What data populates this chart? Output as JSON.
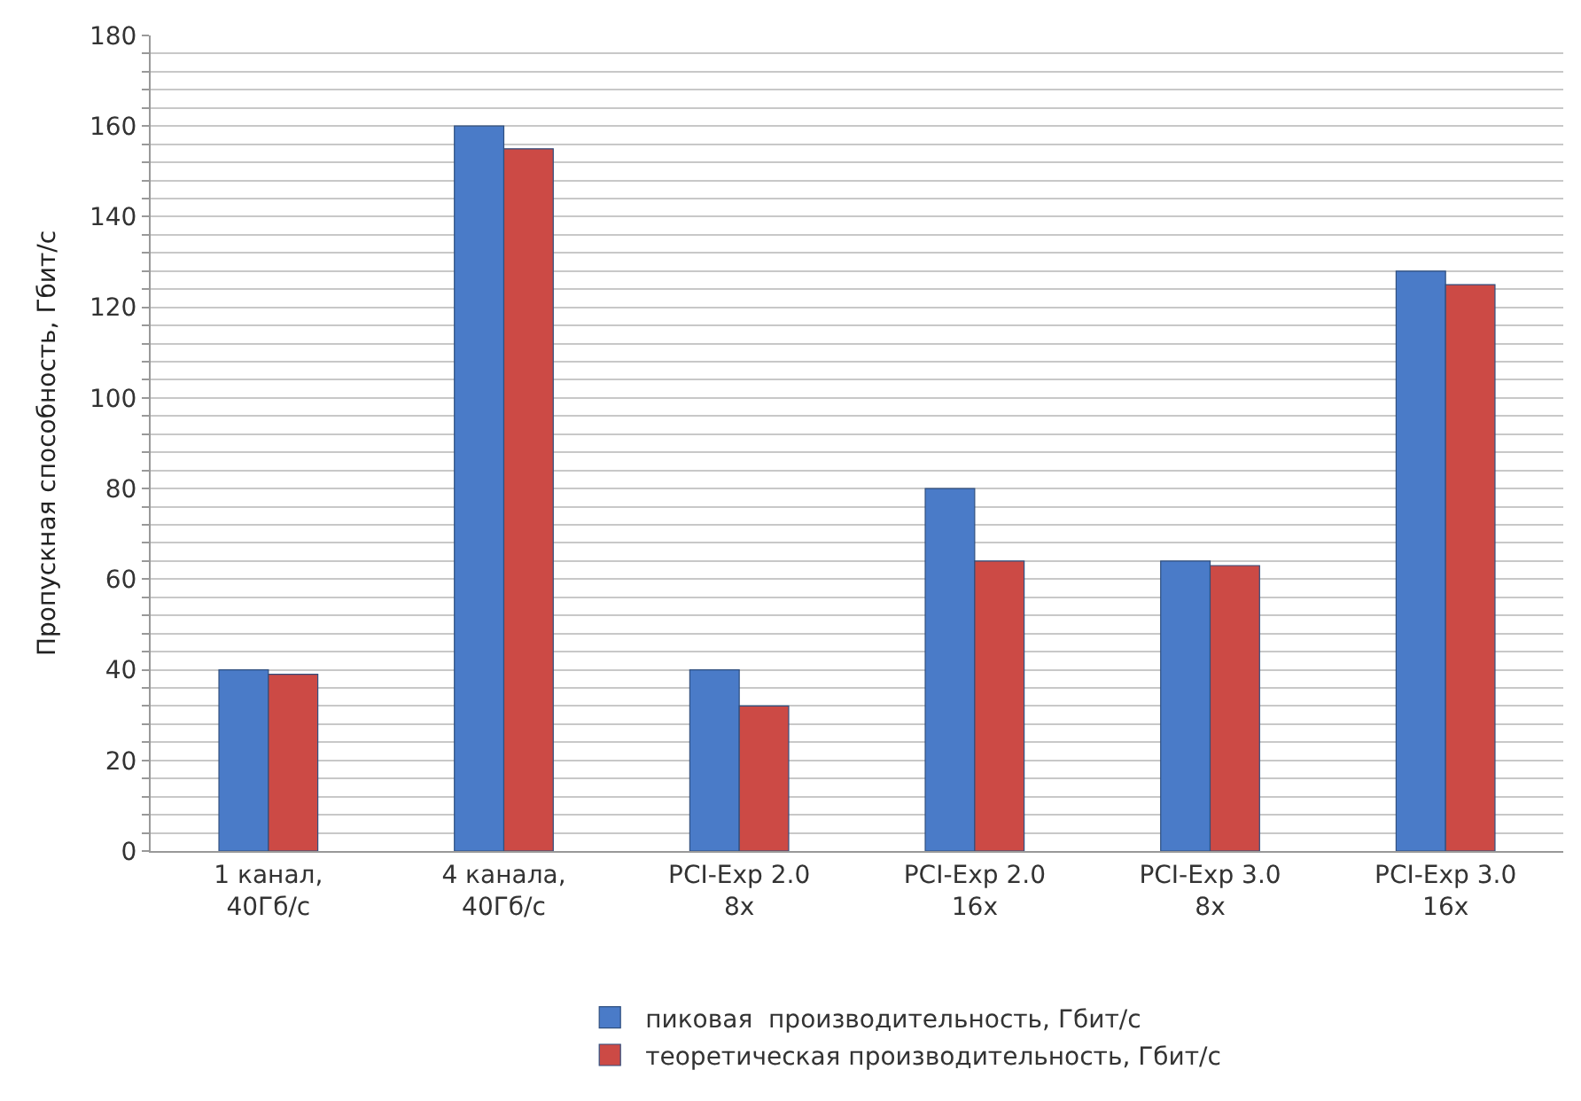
{
  "chart_data": {
    "type": "bar",
    "ylabel": "Пропускная способность, Гбит/с",
    "categories": [
      "1 канал,\n40Гб/с",
      "4 канала,\n40Гб/с",
      "PCI-Exp 2.0\n8x",
      "PCI-Exp 2.0\n16x",
      "PCI-Exp 3.0\n8x",
      "PCI-Exp 3.0\n16x"
    ],
    "series": [
      {
        "name": "пиковая  производительность, Гбит/с",
        "color": "#4a7bc8",
        "values": [
          40,
          160,
          40,
          80,
          64,
          128
        ]
      },
      {
        "name": "теоретическая производительность, Гбит/с",
        "color": "#cc4a45",
        "values": [
          39,
          155,
          32,
          64,
          63,
          125
        ]
      }
    ],
    "ylim": [
      0,
      180
    ],
    "yticks": [
      0,
      {
        "value": 4,
        "label": null
      },
      {
        "value": 8,
        "label": null
      },
      {
        "value": 12,
        "label": null
      },
      {
        "value": 16,
        "label": null
      },
      20,
      {
        "value": 24,
        "label": null
      },
      {
        "value": 28,
        "label": null
      },
      {
        "value": 32,
        "label": null
      },
      {
        "value": 36,
        "label": null
      },
      40,
      {
        "value": 44,
        "label": null
      },
      {
        "value": 48,
        "label": null
      },
      {
        "value": 52,
        "label": null
      },
      {
        "value": 56,
        "label": null
      },
      60,
      {
        "value": 64,
        "label": null
      },
      {
        "value": 68,
        "label": null
      },
      {
        "value": 72,
        "label": null
      },
      {
        "value": 76,
        "label": null
      },
      80,
      {
        "value": 84,
        "label": null
      },
      {
        "value": 88,
        "label": null
      },
      {
        "value": 92,
        "label": null
      },
      {
        "value": 96,
        "label": null
      },
      100,
      {
        "value": 104,
        "label": null
      },
      {
        "value": 108,
        "label": null
      },
      {
        "value": 112,
        "label": null
      },
      {
        "value": 116,
        "label": null
      },
      120,
      {
        "value": 124,
        "label": null
      },
      {
        "value": 128,
        "label": null
      },
      {
        "value": 132,
        "label": null
      },
      {
        "value": 136,
        "label": null
      },
      140,
      {
        "value": 144,
        "label": null
      },
      {
        "value": 148,
        "label": null
      },
      {
        "value": 152,
        "label": null
      },
      {
        "value": 156,
        "label": null
      },
      160,
      {
        "value": 164,
        "label": null
      },
      {
        "value": 168,
        "label": null
      },
      {
        "value": 172,
        "label": null
      },
      {
        "value": 176,
        "label": null
      },
      180
    ],
    "grid": "y",
    "legend": "bottom"
  }
}
